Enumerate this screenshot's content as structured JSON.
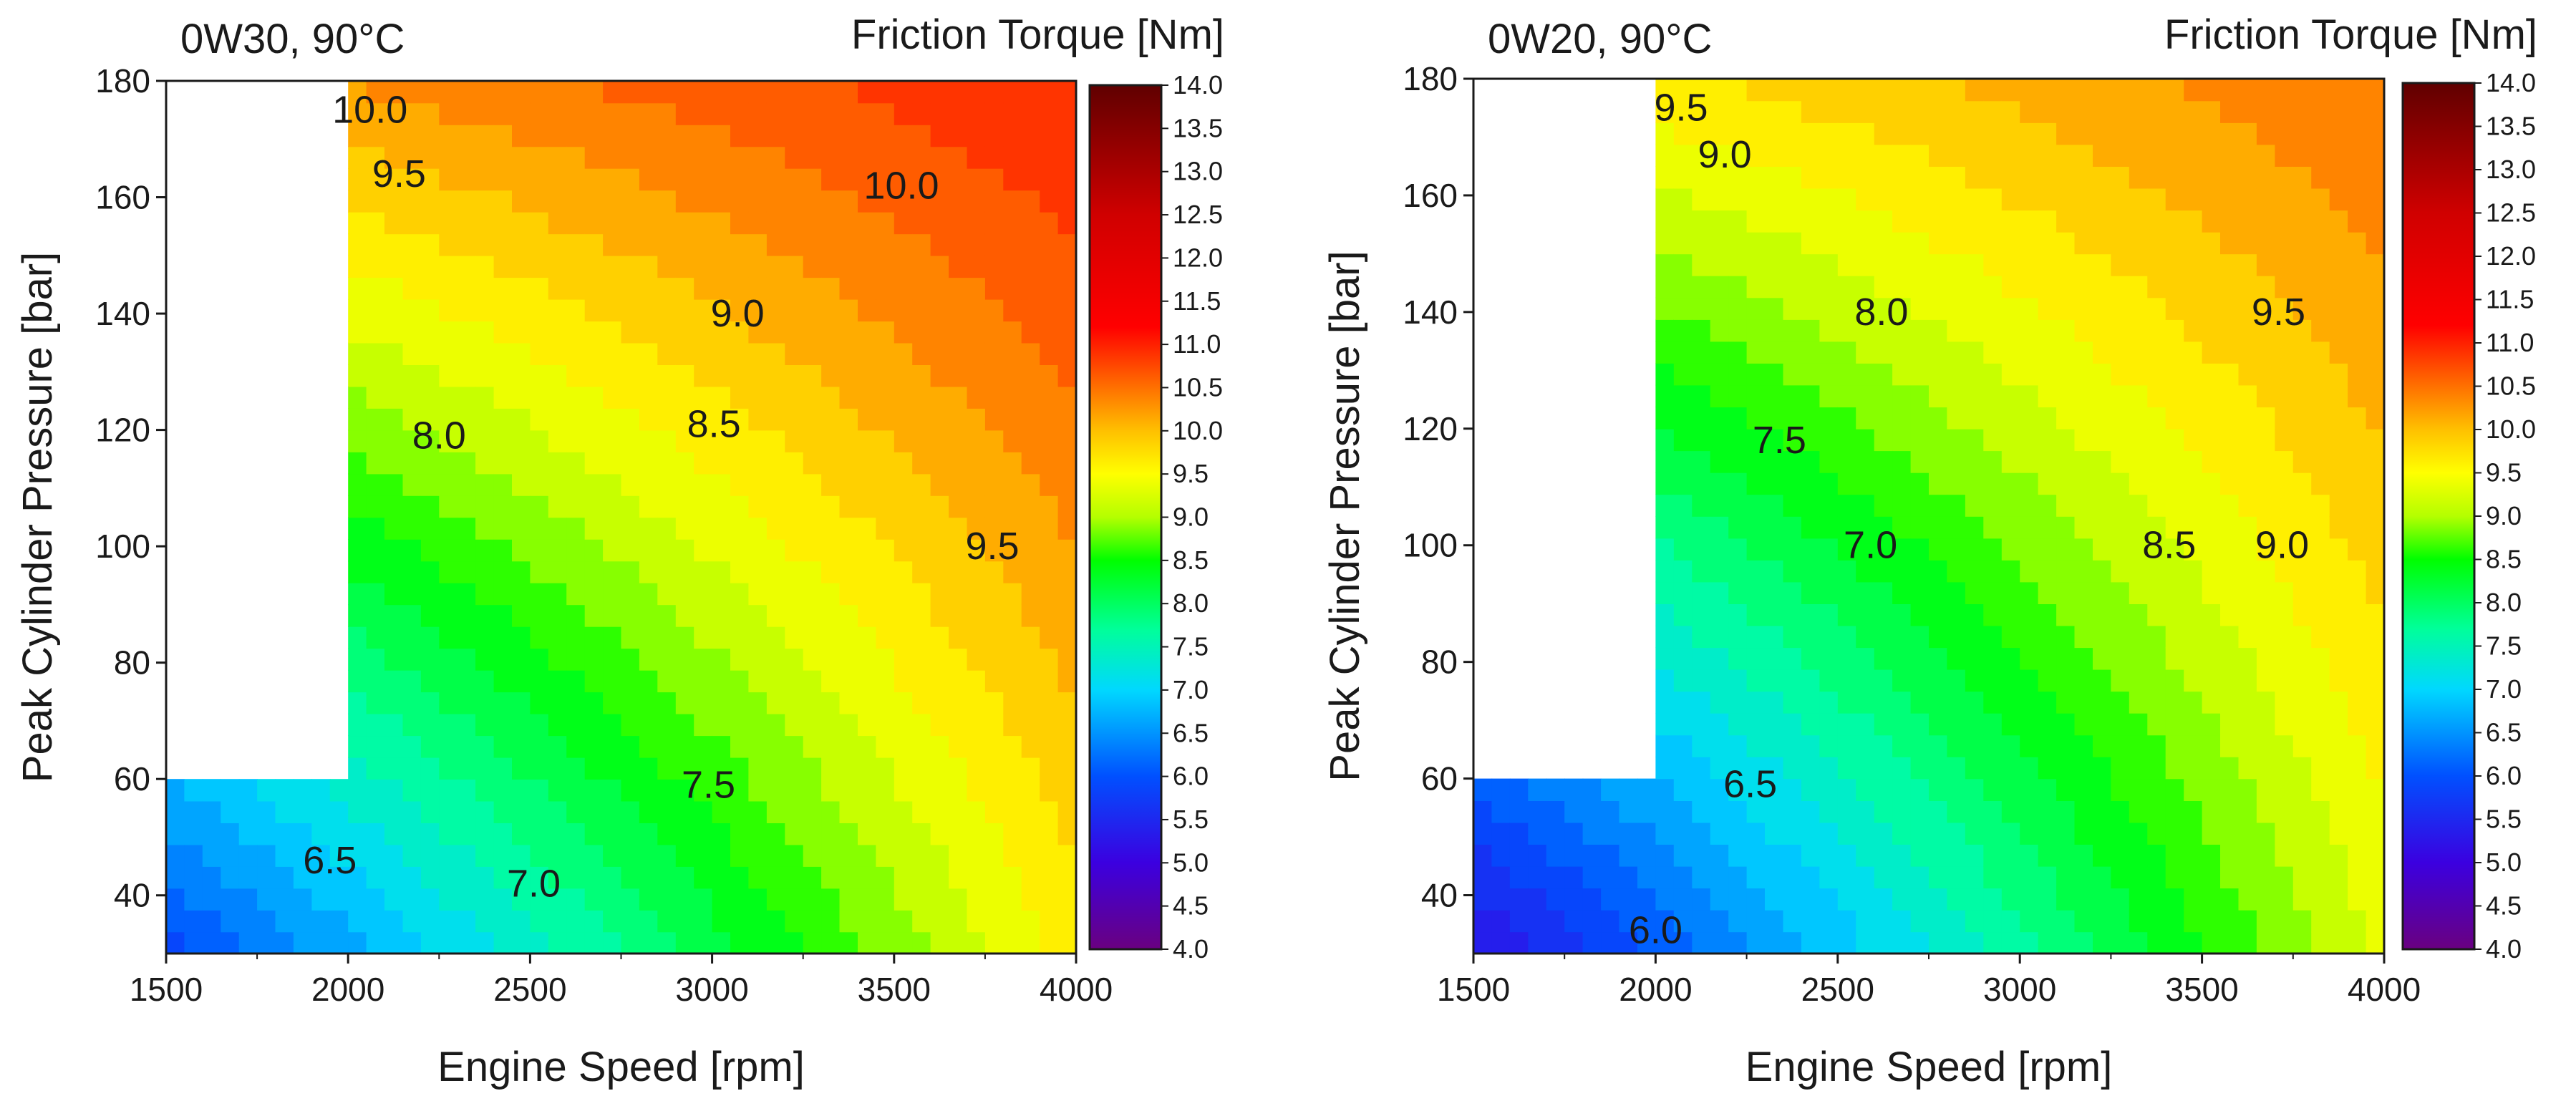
{
  "chart_data": [
    {
      "type": "contour",
      "title": "0W30, 90°C",
      "colorbar_title": "Friction Torque [Nm]",
      "xlabel": "Engine Speed [rpm]",
      "ylabel": "Peak Cylinder Pressure [bar]",
      "xlim": [
        1500,
        4000
      ],
      "ylim": [
        30,
        180
      ],
      "xticks": [
        "1500",
        "2000",
        "2500",
        "3000",
        "3500",
        "4000"
      ],
      "yticks": [
        "40",
        "60",
        "80",
        "100",
        "120",
        "140",
        "160",
        "180"
      ],
      "colorbar_range": [
        4.0,
        14.0
      ],
      "colorbar_ticks": [
        "4.0",
        "4.5",
        "5.0",
        "5.5",
        "6.0",
        "6.5",
        "7.0",
        "7.5",
        "8.0",
        "8.5",
        "9.0",
        "9.5",
        "10.0",
        "10.5",
        "11.0",
        "11.5",
        "12.0",
        "12.5",
        "13.0",
        "13.5",
        "14.0"
      ],
      "blank_region": {
        "x_max": 2000,
        "y_min": 60
      },
      "corner_values": {
        "x1500_y30": 5.9,
        "x4000_y30": 9.6,
        "x2000_y180": 10.1,
        "x4000_y180": 11.0
      },
      "contour_labels": [
        {
          "text": "10.0",
          "x": 2060,
          "y": 175
        },
        {
          "text": "9.5",
          "x": 2140,
          "y": 164
        },
        {
          "text": "10.0",
          "x": 3520,
          "y": 162
        },
        {
          "text": "9.0",
          "x": 3070,
          "y": 140
        },
        {
          "text": "8.5",
          "x": 3005,
          "y": 121
        },
        {
          "text": "8.0",
          "x": 2250,
          "y": 119
        },
        {
          "text": "9.5",
          "x": 3770,
          "y": 100
        },
        {
          "text": "7.5",
          "x": 2990,
          "y": 59
        },
        {
          "text": "6.5",
          "x": 1950,
          "y": 46
        },
        {
          "text": "7.0",
          "x": 2510,
          "y": 42
        }
      ]
    },
    {
      "type": "contour",
      "title": "0W20, 90°C",
      "colorbar_title": "Friction Torque [Nm]",
      "xlabel": "Engine Speed [rpm]",
      "ylabel": "Peak Cylinder Pressure [bar]",
      "xlim": [
        1500,
        4000
      ],
      "ylim": [
        30,
        180
      ],
      "xticks": [
        "1500",
        "2000",
        "2500",
        "3000",
        "3500",
        "4000"
      ],
      "yticks": [
        "40",
        "60",
        "80",
        "100",
        "120",
        "140",
        "160",
        "180"
      ],
      "colorbar_range": [
        4.0,
        14.0
      ],
      "colorbar_ticks": [
        "4.0",
        "4.5",
        "5.0",
        "5.5",
        "6.0",
        "6.5",
        "7.0",
        "7.5",
        "8.0",
        "8.5",
        "9.0",
        "9.5",
        "10.0",
        "10.5",
        "11.0",
        "11.5",
        "12.0",
        "12.5",
        "13.0",
        "13.5",
        "14.0"
      ],
      "blank_region": {
        "x_max": 2000,
        "y_min": 60
      },
      "corner_values": {
        "x1500_y30": 5.2,
        "x4000_y30": 9.3,
        "x2000_y180": 9.5,
        "x4000_y180": 10.5
      },
      "contour_labels": [
        {
          "text": "9.5",
          "x": 2070,
          "y": 175
        },
        {
          "text": "9.0",
          "x": 2190,
          "y": 167
        },
        {
          "text": "8.0",
          "x": 2620,
          "y": 140
        },
        {
          "text": "9.5",
          "x": 3710,
          "y": 140
        },
        {
          "text": "7.5",
          "x": 2340,
          "y": 118
        },
        {
          "text": "7.0",
          "x": 2590,
          "y": 100
        },
        {
          "text": "8.5",
          "x": 3410,
          "y": 100
        },
        {
          "text": "9.0",
          "x": 3720,
          "y": 100
        },
        {
          "text": "6.5",
          "x": 2260,
          "y": 59
        },
        {
          "text": "6.0",
          "x": 2000,
          "y": 34
        }
      ]
    }
  ]
}
